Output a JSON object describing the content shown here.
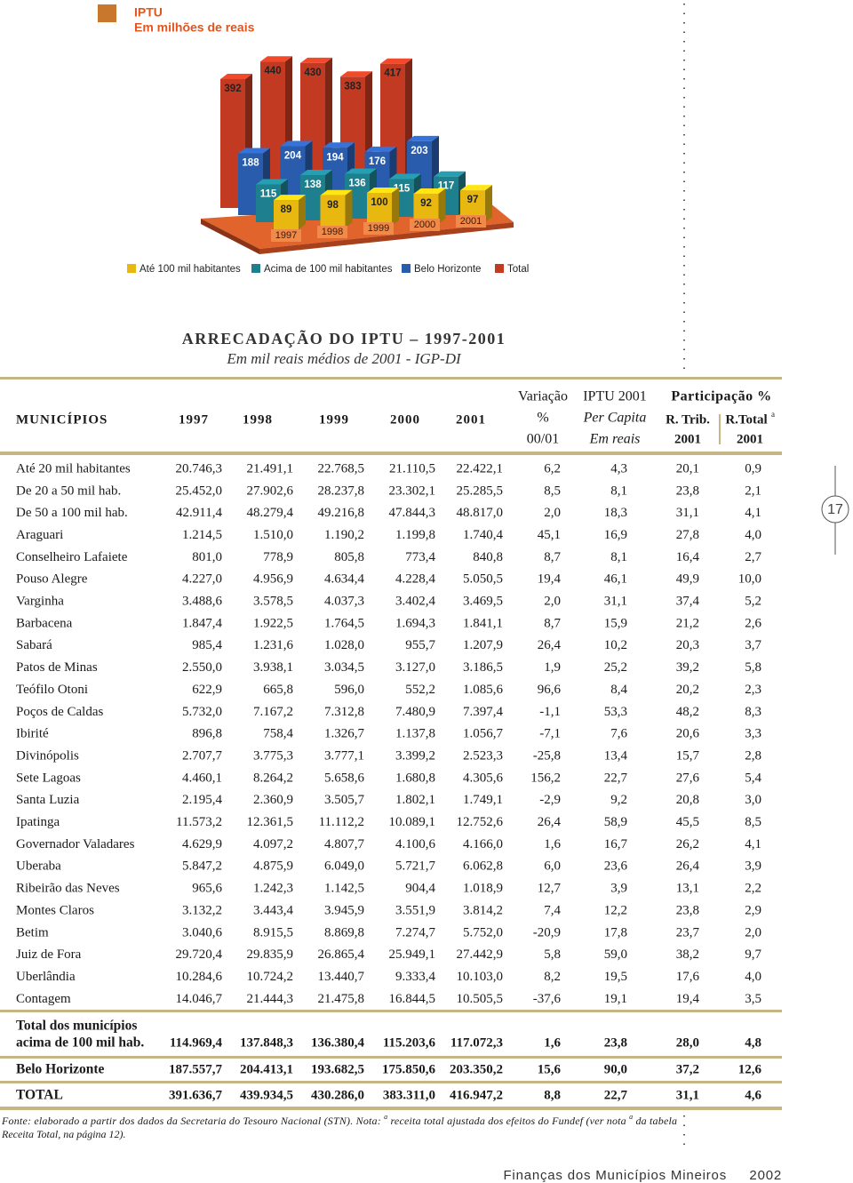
{
  "chart_data": {
    "type": "bar3d",
    "title": "IPTU",
    "subtitle": "Em milhões de reais",
    "categories": [
      "1997",
      "1998",
      "1999",
      "2000",
      "2001"
    ],
    "series": [
      {
        "name": "Até 100 mil habitantes",
        "color": "#e8b810",
        "values": [
          89,
          98,
          100,
          92,
          97
        ]
      },
      {
        "name": "Acima de 100 mil habitantes",
        "color": "#1e7f8e",
        "values": [
          115,
          138,
          136,
          115,
          117
        ]
      },
      {
        "name": "Belo Horizonte",
        "color": "#2a5cae",
        "values": [
          188,
          204,
          194,
          176,
          203
        ]
      },
      {
        "name": "Total",
        "color": "#c23a22",
        "values": [
          392,
          440,
          430,
          383,
          417
        ]
      }
    ]
  },
  "table": {
    "title": "ARRECADAÇÃO DO IPTU – 1997-2001",
    "subtitle": "Em mil reais médios de 2001 - IGP-DI",
    "header": {
      "municipios": "MUNICÍPIOS",
      "years": [
        "1997",
        "1998",
        "1999",
        "2000",
        "2001"
      ],
      "variacao": [
        "Variação",
        "%",
        "00/01"
      ],
      "per_capita": [
        "IPTU 2001",
        "Per Capita",
        "Em reais"
      ],
      "participacao": "Participação %",
      "r_trib": [
        "R. Trib.",
        "2001"
      ],
      "r_total": [
        "R.Total",
        "a",
        "2001"
      ]
    },
    "rows": [
      {
        "name": "Até 20 mil habitantes",
        "cells": [
          "20.746,3",
          "21.491,1",
          "22.768,5",
          "21.110,5",
          "22.422,1",
          "6,2",
          "4,3",
          "20,1",
          "0,9"
        ]
      },
      {
        "name": "De 20 a 50 mil hab.",
        "cells": [
          "25.452,0",
          "27.902,6",
          "28.237,8",
          "23.302,1",
          "25.285,5",
          "8,5",
          "8,1",
          "23,8",
          "2,1"
        ]
      },
      {
        "name": "De 50 a 100 mil hab.",
        "cells": [
          "42.911,4",
          "48.279,4",
          "49.216,8",
          "47.844,3",
          "48.817,0",
          "2,0",
          "18,3",
          "31,1",
          "4,1"
        ]
      },
      {
        "name": "Araguari",
        "cells": [
          "1.214,5",
          "1.510,0",
          "1.190,2",
          "1.199,8",
          "1.740,4",
          "45,1",
          "16,9",
          "27,8",
          "4,0"
        ]
      },
      {
        "name": "Conselheiro Lafaiete",
        "cells": [
          "801,0",
          "778,9",
          "805,8",
          "773,4",
          "840,8",
          "8,7",
          "8,1",
          "16,4",
          "2,7"
        ]
      },
      {
        "name": "Pouso Alegre",
        "cells": [
          "4.227,0",
          "4.956,9",
          "4.634,4",
          "4.228,4",
          "5.050,5",
          "19,4",
          "46,1",
          "49,9",
          "10,0"
        ]
      },
      {
        "name": "Varginha",
        "cells": [
          "3.488,6",
          "3.578,5",
          "4.037,3",
          "3.402,4",
          "3.469,5",
          "2,0",
          "31,1",
          "37,4",
          "5,2"
        ]
      },
      {
        "name": "Barbacena",
        "cells": [
          "1.847,4",
          "1.922,5",
          "1.764,5",
          "1.694,3",
          "1.841,1",
          "8,7",
          "15,9",
          "21,2",
          "2,6"
        ]
      },
      {
        "name": "Sabará",
        "cells": [
          "985,4",
          "1.231,6",
          "1.028,0",
          "955,7",
          "1.207,9",
          "26,4",
          "10,2",
          "20,3",
          "3,7"
        ]
      },
      {
        "name": "Patos de Minas",
        "cells": [
          "2.550,0",
          "3.938,1",
          "3.034,5",
          "3.127,0",
          "3.186,5",
          "1,9",
          "25,2",
          "39,2",
          "5,8"
        ]
      },
      {
        "name": "Teófilo Otoni",
        "cells": [
          "622,9",
          "665,8",
          "596,0",
          "552,2",
          "1.085,6",
          "96,6",
          "8,4",
          "20,2",
          "2,3"
        ]
      },
      {
        "name": "Poços de Caldas",
        "cells": [
          "5.732,0",
          "7.167,2",
          "7.312,8",
          "7.480,9",
          "7.397,4",
          "-1,1",
          "53,3",
          "48,2",
          "8,3"
        ]
      },
      {
        "name": "Ibirité",
        "cells": [
          "896,8",
          "758,4",
          "1.326,7",
          "1.137,8",
          "1.056,7",
          "-7,1",
          "7,6",
          "20,6",
          "3,3"
        ]
      },
      {
        "name": "Divinópolis",
        "cells": [
          "2.707,7",
          "3.775,3",
          "3.777,1",
          "3.399,2",
          "2.523,3",
          "-25,8",
          "13,4",
          "15,7",
          "2,8"
        ]
      },
      {
        "name": "Sete Lagoas",
        "cells": [
          "4.460,1",
          "8.264,2",
          "5.658,6",
          "1.680,8",
          "4.305,6",
          "156,2",
          "22,7",
          "27,6",
          "5,4"
        ]
      },
      {
        "name": "Santa Luzia",
        "cells": [
          "2.195,4",
          "2.360,9",
          "3.505,7",
          "1.802,1",
          "1.749,1",
          "-2,9",
          "9,2",
          "20,8",
          "3,0"
        ]
      },
      {
        "name": "Ipatinga",
        "cells": [
          "11.573,2",
          "12.361,5",
          "11.112,2",
          "10.089,1",
          "12.752,6",
          "26,4",
          "58,9",
          "45,5",
          "8,5"
        ]
      },
      {
        "name": "Governador Valadares",
        "cells": [
          "4.629,9",
          "4.097,2",
          "4.807,7",
          "4.100,6",
          "4.166,0",
          "1,6",
          "16,7",
          "26,2",
          "4,1"
        ]
      },
      {
        "name": "Uberaba",
        "cells": [
          "5.847,2",
          "4.875,9",
          "6.049,0",
          "5.721,7",
          "6.062,8",
          "6,0",
          "23,6",
          "26,4",
          "3,9"
        ]
      },
      {
        "name": "Ribeirão das Neves",
        "cells": [
          "965,6",
          "1.242,3",
          "1.142,5",
          "904,4",
          "1.018,9",
          "12,7",
          "3,9",
          "13,1",
          "2,2"
        ]
      },
      {
        "name": "Montes Claros",
        "cells": [
          "3.132,2",
          "3.443,4",
          "3.945,9",
          "3.551,9",
          "3.814,2",
          "7,4",
          "12,2",
          "23,8",
          "2,9"
        ]
      },
      {
        "name": "Betim",
        "cells": [
          "3.040,6",
          "8.915,5",
          "8.869,8",
          "7.274,7",
          "5.752,0",
          "-20,9",
          "17,8",
          "23,7",
          "2,0"
        ]
      },
      {
        "name": "Juiz de Fora",
        "cells": [
          "29.720,4",
          "29.835,9",
          "26.865,4",
          "25.949,1",
          "27.442,9",
          "5,8",
          "59,0",
          "38,2",
          "9,7"
        ]
      },
      {
        "name": "Uberlândia",
        "cells": [
          "10.284,6",
          "10.724,2",
          "13.440,7",
          "9.333,4",
          "10.103,0",
          "8,2",
          "19,5",
          "17,6",
          "4,0"
        ]
      },
      {
        "name": "Contagem",
        "cells": [
          "14.046,7",
          "21.444,3",
          "21.475,8",
          "16.844,5",
          "10.505,5",
          "-37,6",
          "19,1",
          "19,4",
          "3,5"
        ]
      }
    ],
    "totals": [
      {
        "name": [
          "Total dos municípios",
          "acima de 100 mil hab."
        ],
        "cells": [
          "114.969,4",
          "137.848,3",
          "136.380,4",
          "115.203,6",
          "117.072,3",
          "1,6",
          "23,8",
          "28,0",
          "4,8"
        ]
      },
      {
        "name": [
          "Belo Horizonte"
        ],
        "cells": [
          "187.557,7",
          "204.413,1",
          "193.682,5",
          "175.850,6",
          "203.350,2",
          "15,6",
          "90,0",
          "37,2",
          "12,6"
        ]
      },
      {
        "name": [
          "TOTAL"
        ],
        "cells": [
          "391.636,7",
          "439.934,5",
          "430.286,0",
          "383.311,0",
          "416.947,2",
          "8,8",
          "22,7",
          "31,1",
          "4,6"
        ]
      }
    ]
  },
  "footnote": {
    "line1": [
      "Fonte: elaborado a partir dos dados da Secretaria do Tesouro Nacional (STN). Nota: ",
      "a",
      " receita total ajustada dos efeitos do Fundef (ver nota ",
      "a",
      " da tabela"
    ],
    "line2": "Receita Total, na página 12)."
  },
  "page_number": "17",
  "footer": {
    "publication": "Finanças dos Municípios Mineiros",
    "year": "2002"
  }
}
